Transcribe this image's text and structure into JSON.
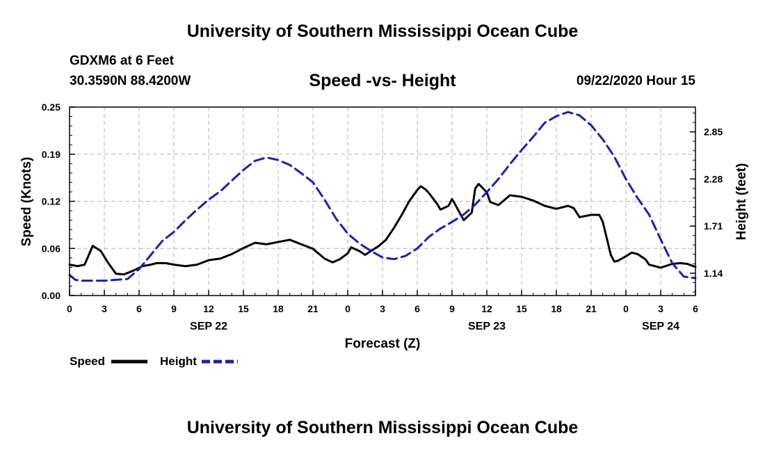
{
  "header": {
    "top_title": "University of Southern Mississippi Ocean Cube",
    "station": "GDXM6 at 6 Feet",
    "coords": "30.3590N 88.4200W",
    "subtitle": "Speed -vs- Height",
    "datetime": "09/22/2020 Hour 15",
    "bottom_title": "University of Southern Mississippi Ocean Cube"
  },
  "colors": {
    "speed": "#000000",
    "height": "#1a1ad0",
    "grid": "#b4b4b4"
  },
  "chart_data": {
    "type": "line",
    "title": "Speed -vs- Height",
    "xlabel": "Forecast (Z)",
    "ylabel_left": "Speed (Knots)",
    "ylabel_right": "Height (feet)",
    "x_range": [
      0,
      54
    ],
    "x_ticks": [
      0,
      3,
      6,
      9,
      12,
      15,
      18,
      21,
      24,
      27,
      30,
      33,
      36,
      39,
      42,
      45,
      48,
      51,
      54
    ],
    "x_tick_labels": [
      "0",
      "3",
      "6",
      "9",
      "12",
      "15",
      "18",
      "21",
      "0",
      "3",
      "6",
      "9",
      "12",
      "15",
      "18",
      "21",
      "0",
      "3",
      "6"
    ],
    "day_labels": [
      {
        "x": 12,
        "label": "SEP 22"
      },
      {
        "x": 36,
        "label": "SEP 23"
      },
      {
        "x": 51,
        "label": "SEP 24"
      }
    ],
    "left_axis": {
      "range": [
        0,
        0.25
      ],
      "ticks": [
        0,
        0.0625,
        0.125,
        0.1875,
        0.25
      ],
      "tick_labels": [
        "0.00",
        "0.06",
        "0.12",
        "0.19",
        "0.25"
      ]
    },
    "right_axis": {
      "range": [
        0.87,
        3.15
      ],
      "ticks": [
        1.14,
        1.71,
        2.28,
        2.85
      ],
      "tick_labels": [
        "1.14",
        "1.71",
        "2.28",
        "2.85"
      ]
    },
    "grid": true,
    "series": [
      {
        "name": "Speed",
        "axis": "left",
        "style": "solid",
        "x": [
          0,
          0.7,
          1.3,
          2,
          2.7,
          3.3,
          4,
          4.7,
          5.5,
          6.3,
          7,
          7.5,
          8.3,
          9,
          10,
          11,
          12,
          13,
          14,
          15,
          16,
          17,
          18,
          19,
          20,
          21,
          22,
          22.7,
          23.3,
          24,
          24.3,
          24.7,
          25,
          25.5,
          26,
          26.7,
          27.3,
          28,
          28.7,
          29.3,
          30,
          30.3,
          30.7,
          31,
          31.7,
          32,
          32.7,
          33,
          33.3,
          34,
          34.7,
          35,
          35.3,
          36,
          36.3,
          37,
          38,
          39,
          40,
          41,
          42,
          43,
          43.5,
          44,
          45,
          45.7,
          46,
          46.7,
          47,
          47.3,
          48,
          48.5,
          49,
          49.7,
          50,
          51,
          52,
          52.7,
          53.3,
          54
        ],
        "values": [
          0.041,
          0.039,
          0.041,
          0.066,
          0.059,
          0.044,
          0.029,
          0.028,
          0.033,
          0.039,
          0.041,
          0.043,
          0.043,
          0.041,
          0.039,
          0.041,
          0.047,
          0.049,
          0.055,
          0.063,
          0.07,
          0.068,
          0.071,
          0.074,
          0.068,
          0.062,
          0.049,
          0.044,
          0.048,
          0.056,
          0.064,
          0.061,
          0.059,
          0.054,
          0.059,
          0.066,
          0.074,
          0.09,
          0.108,
          0.125,
          0.14,
          0.145,
          0.141,
          0.136,
          0.122,
          0.114,
          0.119,
          0.128,
          0.12,
          0.1,
          0.11,
          0.142,
          0.148,
          0.137,
          0.124,
          0.12,
          0.133,
          0.131,
          0.126,
          0.119,
          0.115,
          0.119,
          0.116,
          0.104,
          0.107,
          0.107,
          0.098,
          0.054,
          0.045,
          0.046,
          0.052,
          0.057,
          0.055,
          0.048,
          0.041,
          0.037,
          0.042,
          0.043,
          0.042,
          0.038
        ]
      },
      {
        "name": "Height",
        "axis": "right",
        "style": "dashed",
        "x": [
          0,
          0.5,
          1,
          2,
          3,
          4,
          5,
          6,
          7,
          8,
          9,
          10,
          11,
          12,
          13,
          14,
          15,
          16,
          17,
          18,
          19,
          20,
          21,
          22,
          23,
          24,
          25,
          26,
          27,
          28,
          29,
          30,
          31,
          32,
          33,
          34,
          35,
          36,
          37,
          38,
          39,
          40,
          41,
          42,
          43,
          44,
          45,
          46,
          47,
          48,
          49,
          50,
          51,
          52,
          53,
          54
        ],
        "values": [
          1.12,
          1.06,
          1.05,
          1.05,
          1.05,
          1.06,
          1.07,
          1.19,
          1.36,
          1.53,
          1.64,
          1.78,
          1.91,
          2.03,
          2.13,
          2.26,
          2.39,
          2.5,
          2.54,
          2.51,
          2.45,
          2.35,
          2.24,
          2.03,
          1.8,
          1.62,
          1.5,
          1.41,
          1.33,
          1.31,
          1.35,
          1.44,
          1.58,
          1.68,
          1.76,
          1.85,
          1.97,
          2.12,
          2.28,
          2.46,
          2.63,
          2.79,
          2.96,
          3.04,
          3.09,
          3.05,
          2.93,
          2.76,
          2.55,
          2.28,
          2.05,
          1.85,
          1.55,
          1.26,
          1.1,
          1.08
        ]
      }
    ],
    "legend": [
      {
        "name": "Speed",
        "style": "solid"
      },
      {
        "name": "Height",
        "style": "dashed"
      }
    ]
  }
}
